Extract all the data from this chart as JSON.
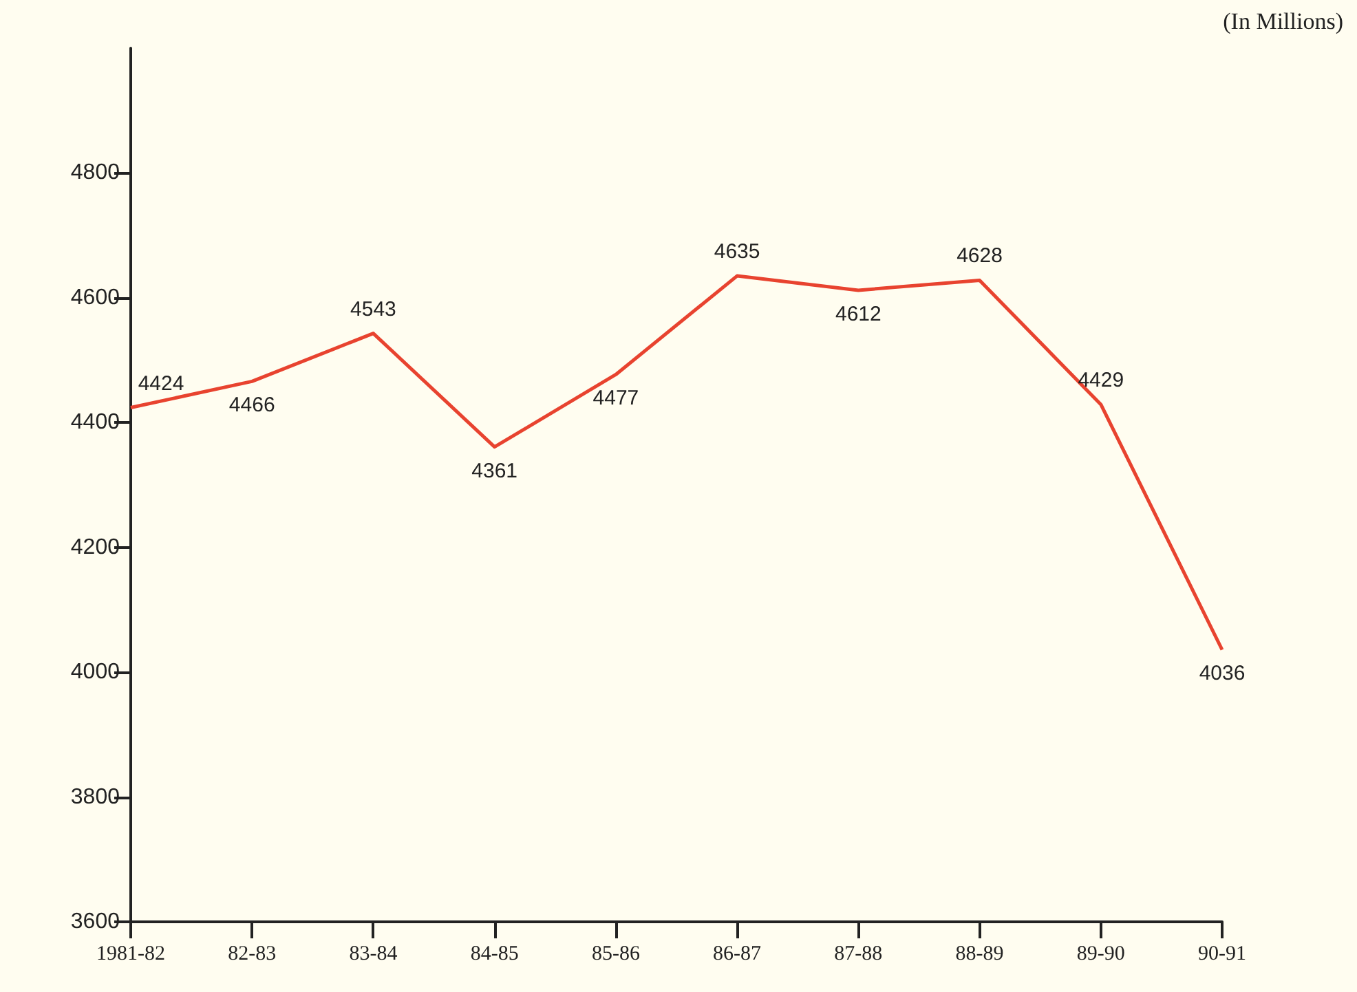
{
  "chart_data": {
    "type": "line",
    "ylabel": "(In Millions)",
    "categories": [
      "1981-82",
      "82-83",
      "83-84",
      "84-85",
      "85-86",
      "86-87",
      "87-88",
      "88-89",
      "89-90",
      "90-91"
    ],
    "series": [
      {
        "color": "#e8432f",
        "values": [
          4424,
          4466,
          4543,
          4361,
          4477,
          4635,
          4612,
          4628,
          4429,
          4036
        ]
      }
    ],
    "ylim": [
      3600,
      5000
    ],
    "yticks": [
      3600,
      3800,
      4000,
      4200,
      4400,
      4600,
      4800
    ],
    "grid": false,
    "marker": "none",
    "line_style": "solid",
    "data_labels": true
  }
}
